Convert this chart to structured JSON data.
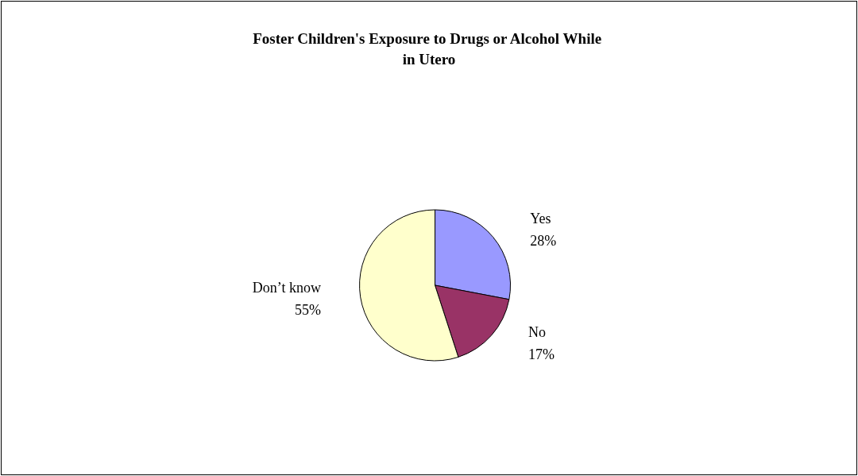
{
  "chart_data": {
    "type": "pie",
    "title": "Foster Children's Exposure to Drugs or Alcohol While in Utero",
    "categories": [
      "Yes",
      "No",
      "Don’t know"
    ],
    "values": [
      28,
      17,
      55
    ],
    "value_labels": [
      "28%",
      "17%",
      "55%"
    ],
    "colors": [
      "#9999ff",
      "#993366",
      "#ffffcc"
    ],
    "legend": false
  }
}
